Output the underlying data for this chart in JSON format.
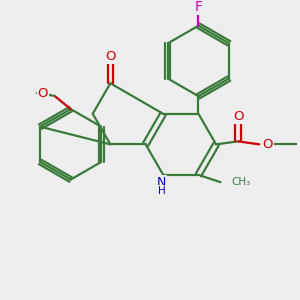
{
  "bg_color": "#eeeeee",
  "bond_color": "#3a7a3a",
  "bond_width": 1.6,
  "font_size": 8.5,
  "colors": {
    "C": "#3a7a3a",
    "N": "#0000cc",
    "O": "#cc0000",
    "F": "#cc00bb",
    "H": "#3a7a3a"
  },
  "figsize": [
    3.0,
    3.0
  ],
  "dpi": 100
}
